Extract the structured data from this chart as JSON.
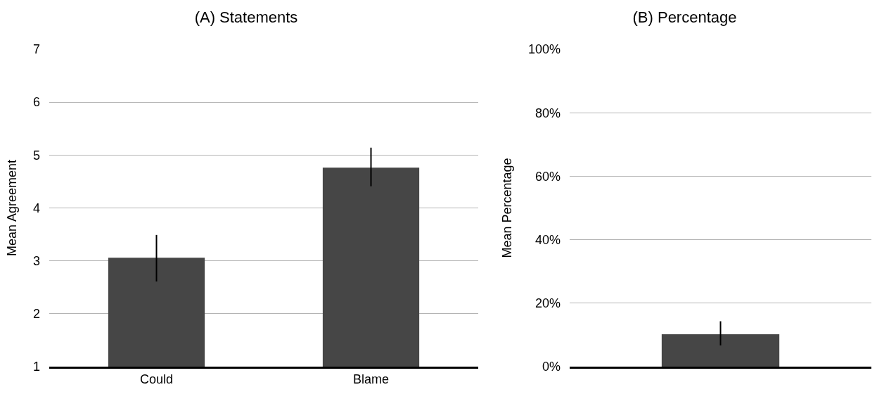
{
  "chart_data": [
    {
      "type": "bar",
      "title": "(A) Statements",
      "ylabel": "Mean Agreement",
      "categories": [
        "Could",
        "Blame"
      ],
      "values": [
        3.06,
        4.76
      ],
      "errors": [
        [
          2.61,
          3.49
        ],
        [
          4.41,
          5.14
        ]
      ],
      "color": "#464646",
      "ylim": [
        1,
        7
      ],
      "yticks": [
        1,
        2,
        3,
        4,
        5,
        6,
        7
      ],
      "grid": "y"
    },
    {
      "type": "bar",
      "title": "(B) Percentage",
      "ylabel": "Mean Percentage",
      "categories": [
        null
      ],
      "values": [
        10.2
      ],
      "errors": [
        [
          6.7,
          14.3
        ]
      ],
      "color": "#464646",
      "ylim": [
        0,
        100
      ],
      "yticks": [
        {
          "value": 0,
          "label": "0%"
        },
        {
          "value": 20,
          "label": "20%"
        },
        {
          "value": 40,
          "label": "40%"
        },
        {
          "value": 60,
          "label": "60%"
        },
        {
          "value": 80,
          "label": "80%"
        },
        {
          "value": 100,
          "label": "100%"
        }
      ],
      "grid": "y"
    }
  ]
}
